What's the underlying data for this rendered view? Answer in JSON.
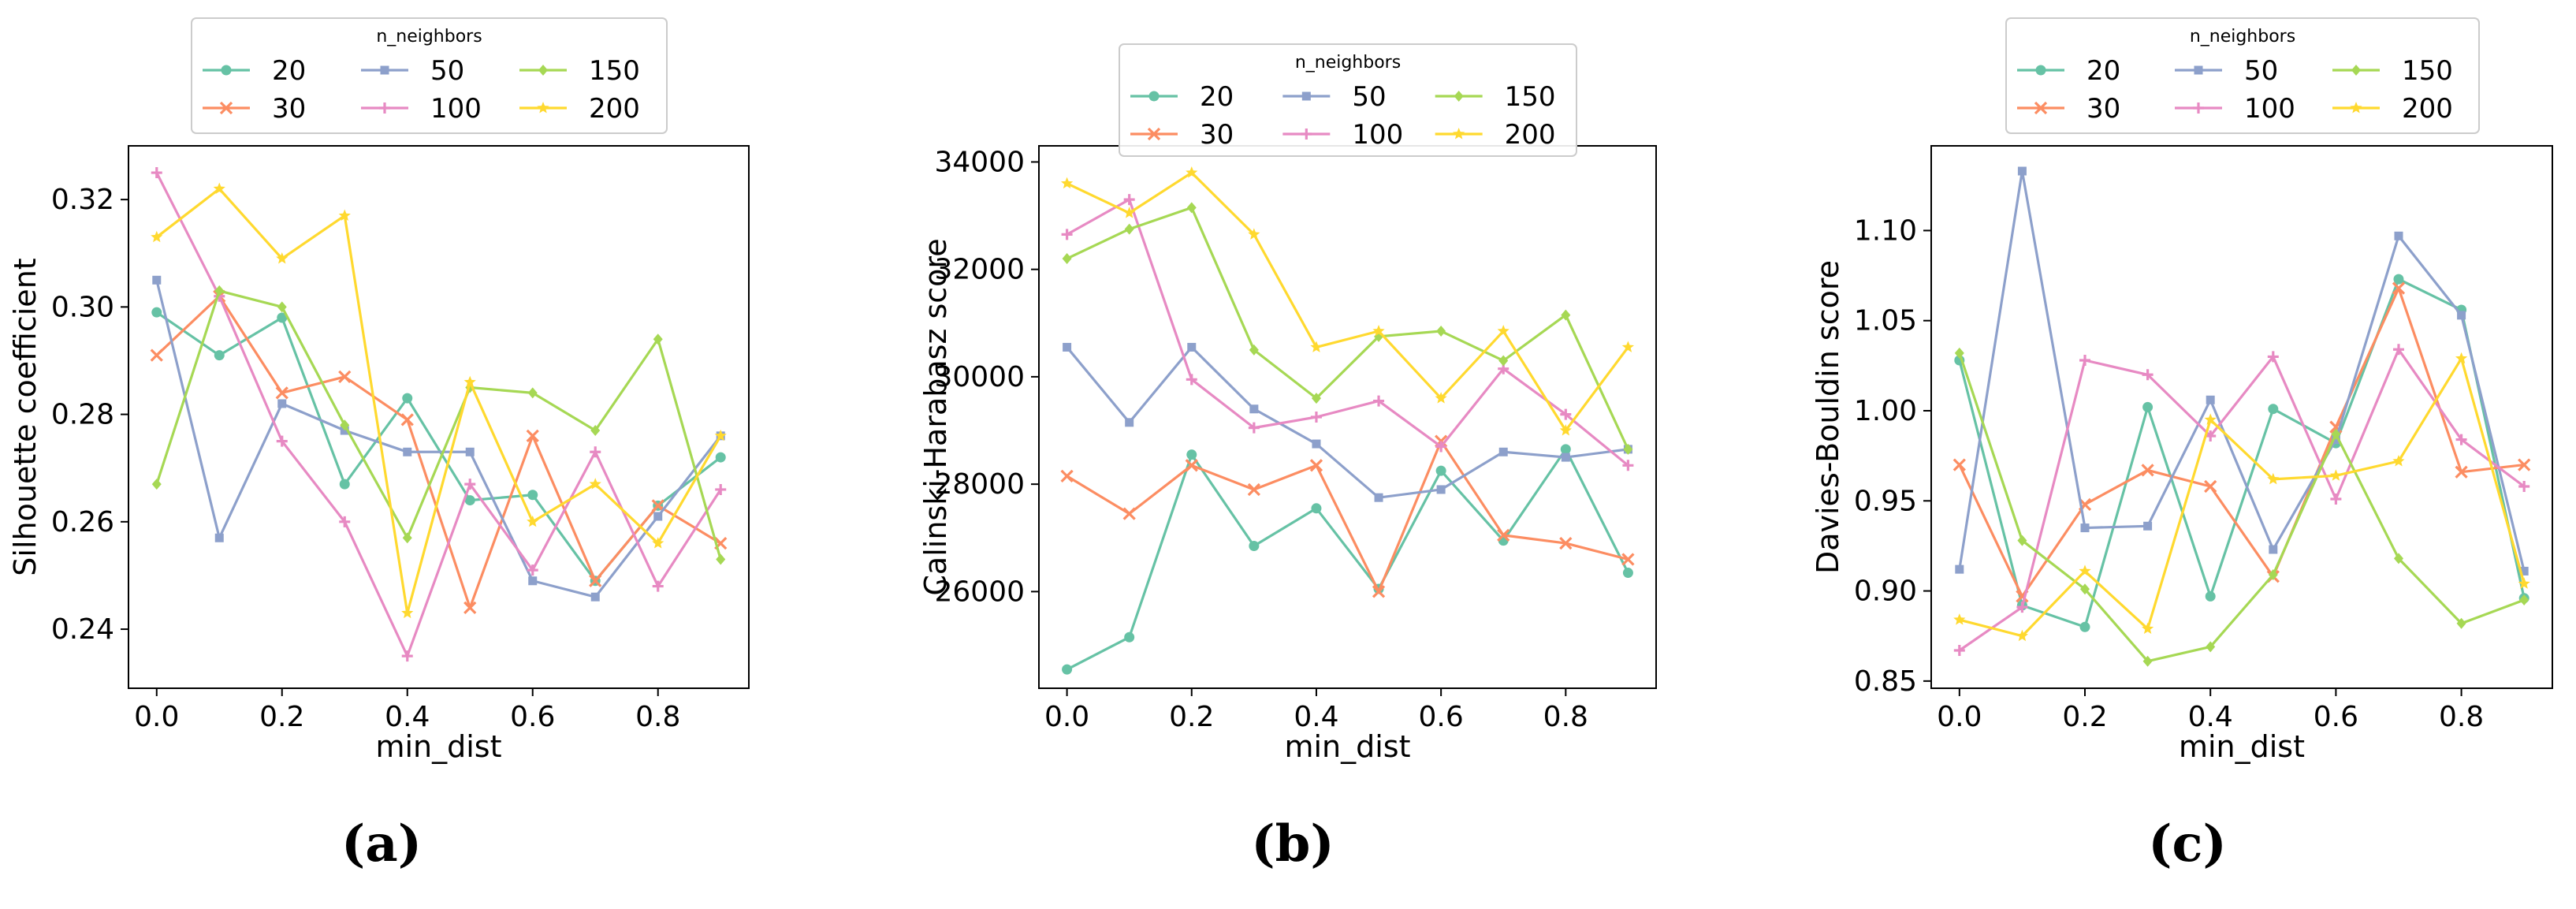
{
  "figure": {
    "captions": [
      "(a)",
      "(b)",
      "(c)"
    ]
  },
  "legend_title": "n_neighbors",
  "series_styles": [
    {
      "name": "20",
      "color": "#66c2a5",
      "marker": "circle"
    },
    {
      "name": "30",
      "color": "#fc8d62",
      "marker": "x"
    },
    {
      "name": "50",
      "color": "#8da0cb",
      "marker": "square"
    },
    {
      "name": "100",
      "color": "#e78ac3",
      "marker": "plus"
    },
    {
      "name": "150",
      "color": "#a6d854",
      "marker": "diamond"
    },
    {
      "name": "200",
      "color": "#ffd92f",
      "marker": "star"
    }
  ],
  "chart_data": [
    {
      "type": "line",
      "title": "",
      "xlabel": "min_dist",
      "ylabel": "Silhouette coefficient",
      "x": [
        0.0,
        0.1,
        0.2,
        0.3,
        0.4,
        0.5,
        0.6,
        0.7,
        0.8,
        0.9
      ],
      "xlim": [
        -0.045,
        0.945
      ],
      "ylim": [
        0.229,
        0.33
      ],
      "xticks": [
        0.0,
        0.2,
        0.4,
        0.6,
        0.8
      ],
      "xtick_labels": [
        "0.0",
        "0.2",
        "0.4",
        "0.6",
        "0.8"
      ],
      "yticks": [
        0.24,
        0.26,
        0.28,
        0.3,
        0.32
      ],
      "ytick_labels": [
        "0.24",
        "0.26",
        "0.28",
        "0.30",
        "0.32"
      ],
      "legend_position": "top-center",
      "series": [
        {
          "name": "20",
          "values": [
            0.299,
            0.291,
            0.298,
            0.267,
            0.283,
            0.264,
            0.265,
            0.249,
            0.263,
            0.272
          ]
        },
        {
          "name": "30",
          "values": [
            0.291,
            0.302,
            0.284,
            0.287,
            0.279,
            0.244,
            0.276,
            0.249,
            0.263,
            0.256
          ]
        },
        {
          "name": "50",
          "values": [
            0.305,
            0.257,
            0.282,
            0.277,
            0.273,
            0.273,
            0.249,
            0.246,
            0.261,
            0.276
          ]
        },
        {
          "name": "100",
          "values": [
            0.325,
            0.302,
            0.275,
            0.26,
            0.235,
            0.267,
            0.251,
            0.273,
            0.248,
            0.266
          ]
        },
        {
          "name": "150",
          "values": [
            0.267,
            0.303,
            0.3,
            0.278,
            0.257,
            0.285,
            0.284,
            0.277,
            0.294,
            0.253
          ]
        },
        {
          "name": "200",
          "values": [
            0.313,
            0.322,
            0.309,
            0.317,
            0.243,
            0.286,
            0.26,
            0.267,
            0.256,
            0.276
          ]
        }
      ]
    },
    {
      "type": "line",
      "title": "",
      "xlabel": "min_dist",
      "ylabel": "Calinski-Harabasz score",
      "x": [
        0.0,
        0.1,
        0.2,
        0.3,
        0.4,
        0.5,
        0.6,
        0.7,
        0.8,
        0.9
      ],
      "xlim": [
        -0.045,
        0.945
      ],
      "ylim": [
        24200,
        34300
      ],
      "xticks": [
        0.0,
        0.2,
        0.4,
        0.6,
        0.8
      ],
      "xtick_labels": [
        "0.0",
        "0.2",
        "0.4",
        "0.6",
        "0.8"
      ],
      "yticks": [
        26000,
        28000,
        30000,
        32000,
        34000
      ],
      "ytick_labels": [
        "26000",
        "28000",
        "30000",
        "32000",
        "34000"
      ],
      "legend_position": "top-center",
      "series": [
        {
          "name": "20",
          "values": [
            24550,
            25150,
            28550,
            26850,
            27550,
            26050,
            28250,
            26950,
            28650,
            26350
          ]
        },
        {
          "name": "30",
          "values": [
            28150,
            27450,
            28350,
            27900,
            28350,
            26000,
            28800,
            27050,
            26900,
            26600
          ]
        },
        {
          "name": "50",
          "values": [
            30550,
            29150,
            30550,
            29400,
            28750,
            27750,
            27900,
            28600,
            28500,
            28650
          ]
        },
        {
          "name": "100",
          "values": [
            32650,
            33300,
            29950,
            29050,
            29250,
            29550,
            28700,
            30150,
            29300,
            28350
          ]
        },
        {
          "name": "150",
          "values": [
            32200,
            32750,
            33150,
            30500,
            29600,
            30750,
            30850,
            30300,
            31150,
            28650
          ]
        },
        {
          "name": "200",
          "values": [
            33600,
            33050,
            33800,
            32650,
            30550,
            30850,
            29600,
            30850,
            29000,
            30550
          ]
        }
      ]
    },
    {
      "type": "line",
      "title": "",
      "xlabel": "min_dist",
      "ylabel": "Davies-Bouldin score",
      "x": [
        0.0,
        0.1,
        0.2,
        0.3,
        0.4,
        0.5,
        0.6,
        0.7,
        0.8,
        0.9
      ],
      "xlim": [
        -0.045,
        0.945
      ],
      "ylim": [
        0.846,
        1.147
      ],
      "xticks": [
        0.0,
        0.2,
        0.4,
        0.6,
        0.8
      ],
      "xtick_labels": [
        "0.0",
        "0.2",
        "0.4",
        "0.6",
        "0.8"
      ],
      "yticks": [
        0.85,
        0.9,
        0.95,
        1.0,
        1.05,
        1.1
      ],
      "ytick_labels": [
        "0.85",
        "0.90",
        "0.95",
        "1.00",
        "1.05",
        "1.10"
      ],
      "legend_position": "top-center",
      "series": [
        {
          "name": "20",
          "values": [
            1.028,
            0.892,
            0.88,
            1.002,
            0.897,
            1.001,
            0.982,
            1.073,
            1.056,
            0.896
          ]
        },
        {
          "name": "30",
          "values": [
            0.97,
            0.897,
            0.948,
            0.967,
            0.958,
            0.908,
            0.991,
            1.068,
            0.966,
            0.97
          ]
        },
        {
          "name": "50",
          "values": [
            0.912,
            1.133,
            0.935,
            0.936,
            1.006,
            0.923,
            0.984,
            1.097,
            1.053,
            0.911
          ]
        },
        {
          "name": "100",
          "values": [
            0.867,
            0.891,
            1.028,
            1.02,
            0.986,
            1.03,
            0.951,
            1.034,
            0.984,
            0.958
          ]
        },
        {
          "name": "150",
          "values": [
            1.032,
            0.928,
            0.901,
            0.861,
            0.869,
            0.909,
            0.987,
            0.918,
            0.882,
            0.895
          ]
        },
        {
          "name": "200",
          "values": [
            0.884,
            0.875,
            0.911,
            0.879,
            0.995,
            0.962,
            0.964,
            0.972,
            1.029,
            0.904
          ]
        }
      ]
    }
  ]
}
